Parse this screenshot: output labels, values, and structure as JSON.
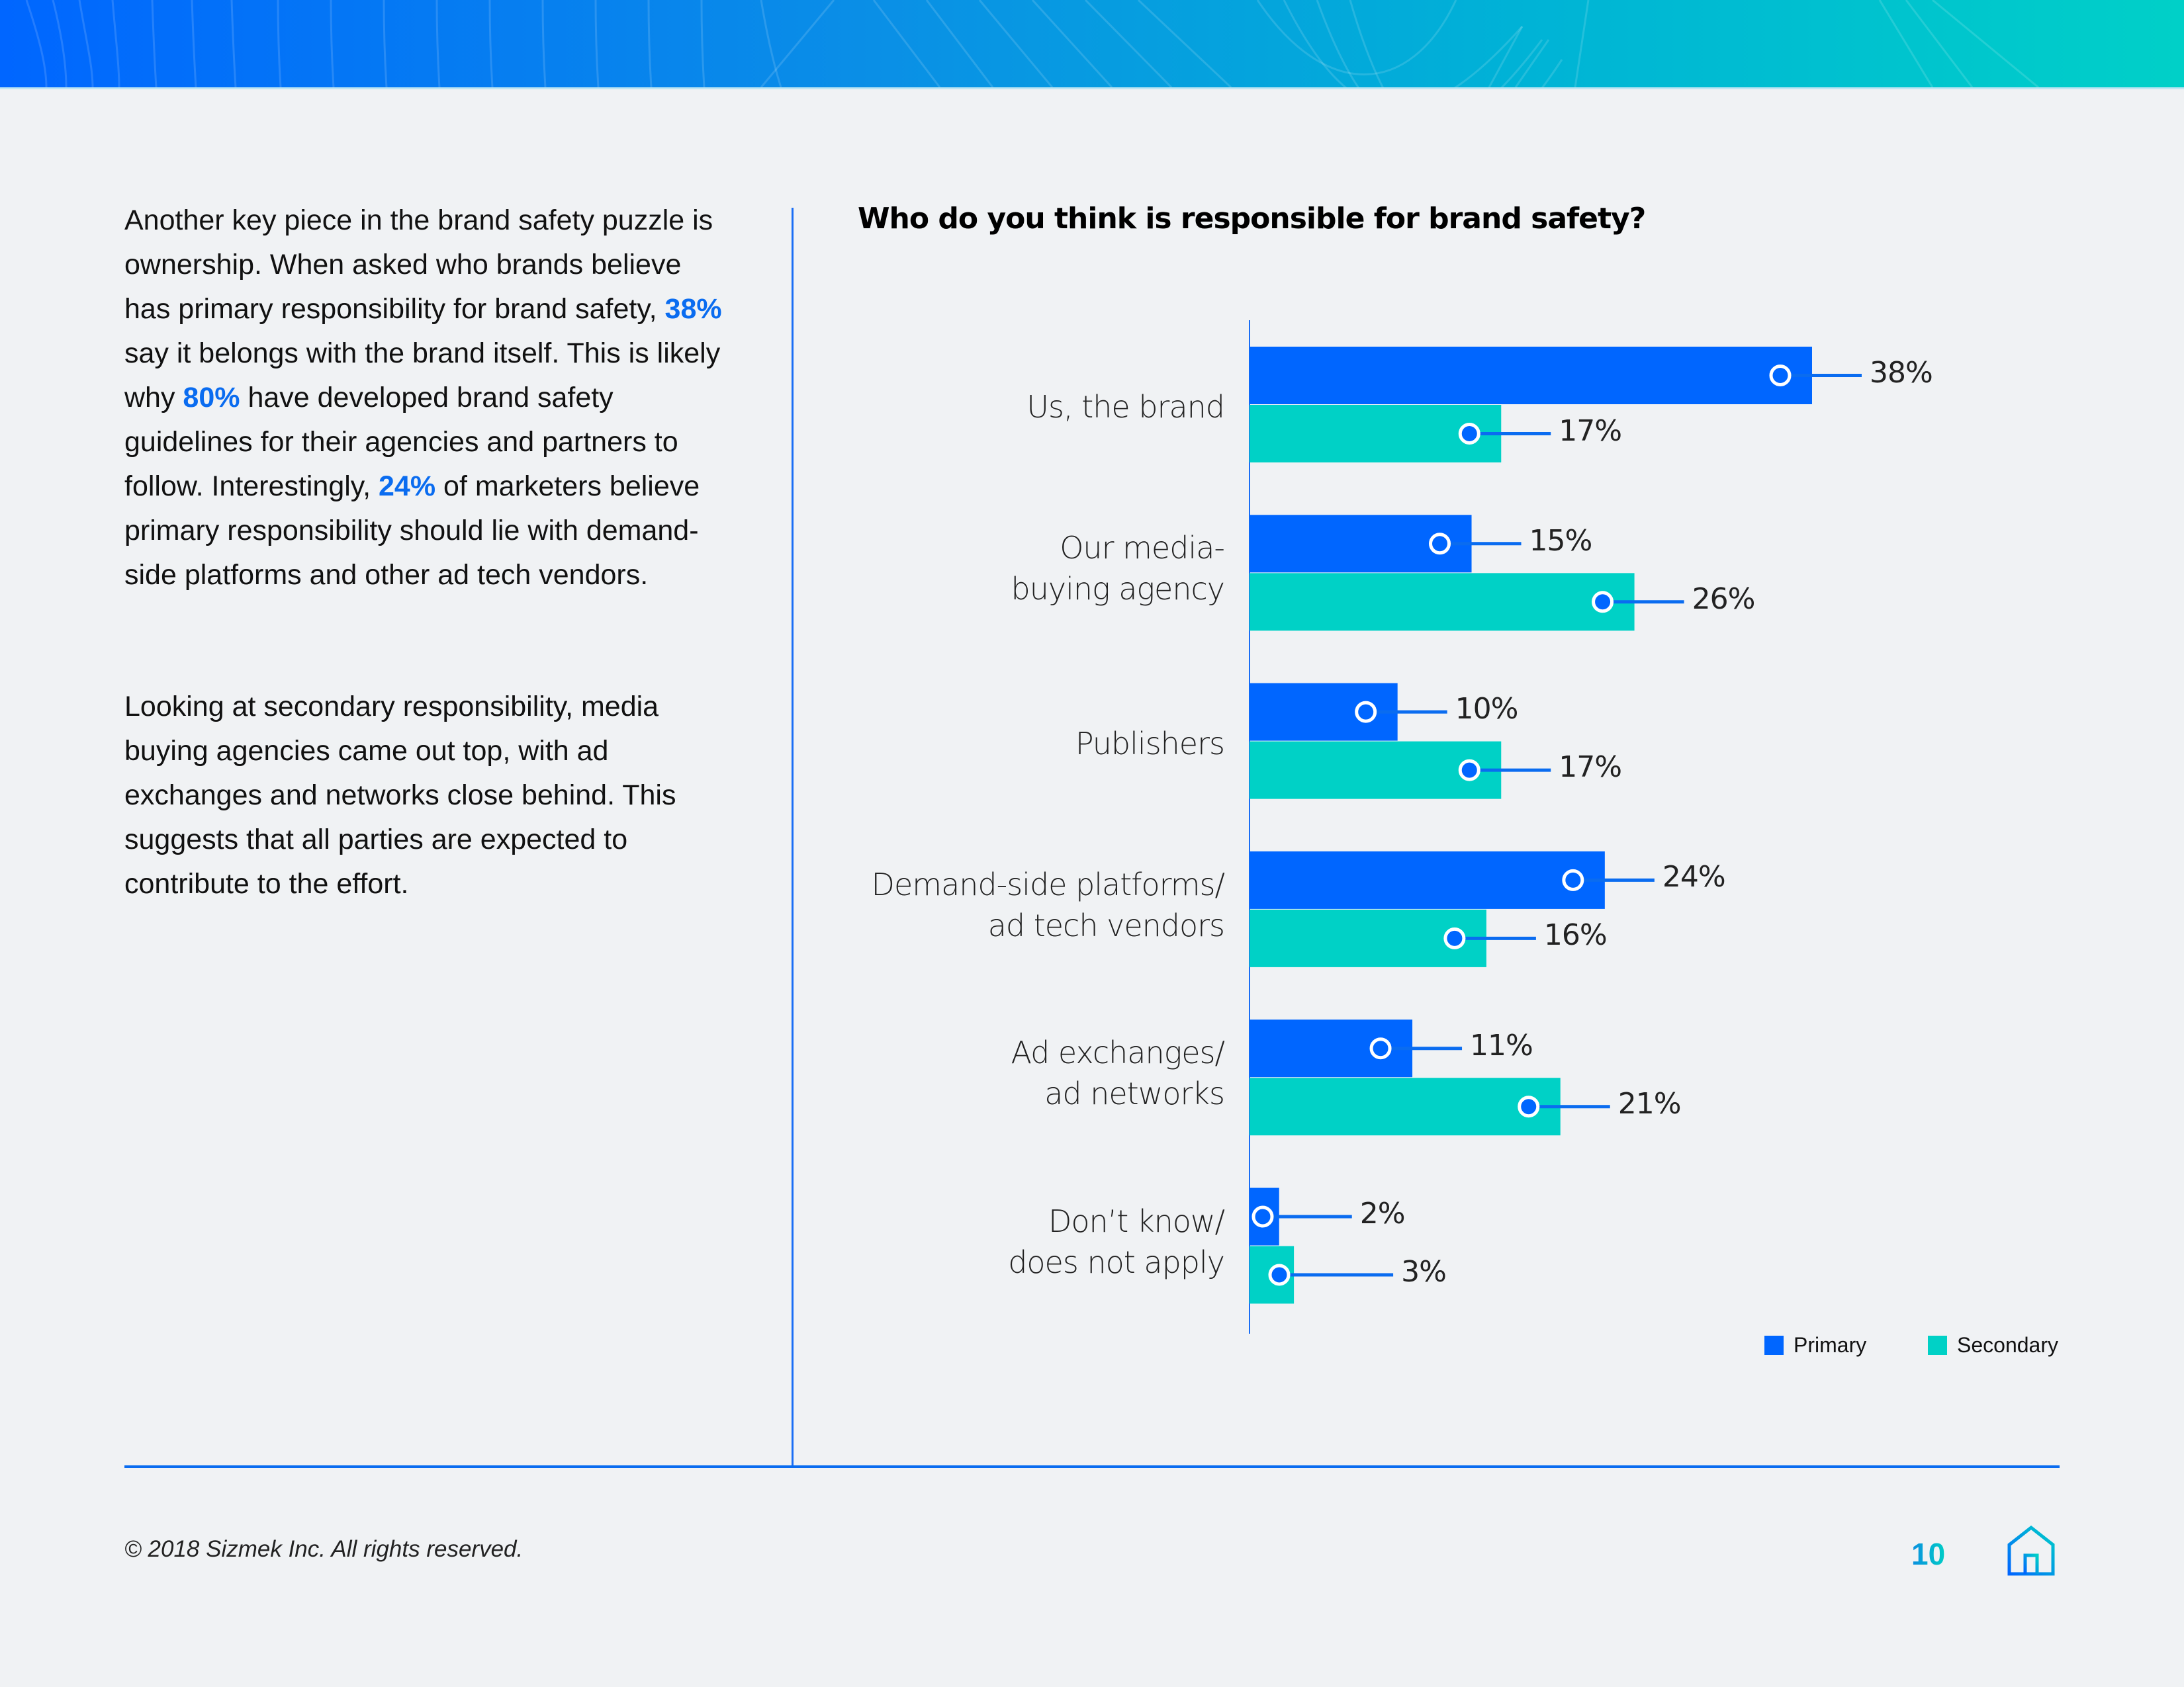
{
  "banner": {
    "decorative": "gradient-wave-banner"
  },
  "body": {
    "paragraph1": [
      {
        "text": "Another key piece in the brand safety puzzle is ownership. When asked who brands believe has primary responsibility for brand safety, ",
        "highlight": false
      },
      {
        "text": "38%",
        "highlight": true
      },
      {
        "text": " say it belongs with the brand itself. This is likely why ",
        "highlight": false
      },
      {
        "text": "80%",
        "highlight": true
      },
      {
        "text": " have developed brand safety guidelines for their agencies and partners to follow. Interestingly, ",
        "highlight": false
      },
      {
        "text": "24%",
        "highlight": true
      },
      {
        "text": " of marketers believe primary responsibility should lie with demand-side platforms and other ad tech vendors.",
        "highlight": false
      }
    ],
    "paragraph2": "Looking at secondary responsibility, media buying agencies came out top, with ad exchanges and networks close behind. This suggests that all parties are expected to contribute to the effort."
  },
  "chart_data": {
    "type": "bar",
    "orientation": "horizontal",
    "title": "Who do you think is responsible for brand safety?",
    "xlabel": "",
    "ylabel": "",
    "xlim": [
      0,
      38
    ],
    "grid": false,
    "legend_position": "bottom-right",
    "categories": [
      [
        "Us, the brand"
      ],
      [
        "Our media-",
        "buying agency"
      ],
      [
        "Publishers"
      ],
      [
        "Demand-side platforms/",
        "ad tech vendors"
      ],
      [
        "Ad exchanges/",
        "ad networks"
      ],
      [
        "Don’t know/",
        "does not apply"
      ]
    ],
    "series": [
      {
        "name": "Primary",
        "color": "#0066ff",
        "values": [
          38,
          15,
          10,
          24,
          11,
          2
        ],
        "labels": [
          "38%",
          "15%",
          "10%",
          "24%",
          "11%",
          "2%"
        ]
      },
      {
        "name": "Secondary",
        "color": "#00d1c6",
        "values": [
          17,
          26,
          17,
          16,
          21,
          3
        ],
        "labels": [
          "17%",
          "26%",
          "17%",
          "16%",
          "21%",
          "3%"
        ]
      }
    ],
    "marker_color": "#0066ff",
    "leader_color": "#0a6cf0"
  },
  "legend": {
    "primary": "Primary",
    "secondary": "Secondary"
  },
  "footer": {
    "copyright": "© 2018 Sizmek Inc. All rights reserved.",
    "page_number": "10",
    "home_icon": "home-icon"
  },
  "colors": {
    "accent_blue": "#0066ff",
    "accent_teal": "#00d1c6",
    "highlight_text": "#0a6cf0",
    "background": "#f0f2f4"
  }
}
